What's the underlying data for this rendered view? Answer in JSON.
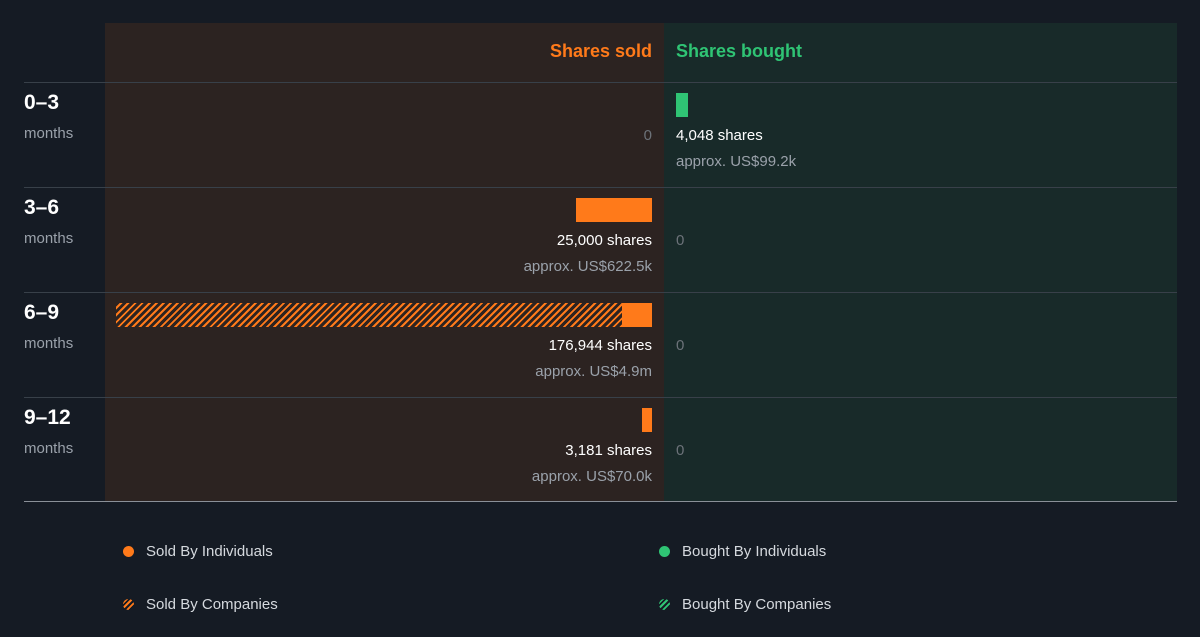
{
  "headers": {
    "sold": "Shares sold",
    "bought": "Shares bought"
  },
  "colors": {
    "sold": "#ff7a1a",
    "bought": "#2fc474"
  },
  "rows": [
    {
      "period": "0–3",
      "unit": "months",
      "sold": {
        "zero_label": "0"
      },
      "bought": {
        "shares_label": "4,048 shares",
        "approx_label": "approx. US$99.2k"
      }
    },
    {
      "period": "3–6",
      "unit": "months",
      "sold": {
        "shares_label": "25,000 shares",
        "approx_label": "approx. US$622.5k"
      },
      "bought": {
        "zero_label": "0"
      }
    },
    {
      "period": "6–9",
      "unit": "months",
      "sold": {
        "shares_label": "176,944 shares",
        "approx_label": "approx. US$4.9m"
      },
      "bought": {
        "zero_label": "0"
      }
    },
    {
      "period": "9–12",
      "unit": "months",
      "sold": {
        "shares_label": "3,181 shares",
        "approx_label": "approx. US$70.0k"
      },
      "bought": {
        "zero_label": "0"
      }
    }
  ],
  "legend": [
    {
      "label": "Sold By Individuals",
      "kind": "solid",
      "side": "sold"
    },
    {
      "label": "Bought By Individuals",
      "kind": "solid",
      "side": "bought"
    },
    {
      "label": "Sold By Companies",
      "kind": "hatch",
      "side": "sold"
    },
    {
      "label": "Bought By Companies",
      "kind": "hatch",
      "side": "bought"
    }
  ],
  "chart_data": {
    "type": "bar",
    "categories": [
      "0–3",
      "3–6",
      "6–9",
      "9–12"
    ],
    "series": [
      {
        "name": "Sold By Individuals",
        "values": [
          0,
          25000,
          10000,
          3181
        ]
      },
      {
        "name": "Sold By Companies",
        "values": [
          0,
          0,
          166944,
          0
        ]
      },
      {
        "name": "Bought By Individuals",
        "values": [
          4048,
          0,
          0,
          0
        ]
      },
      {
        "name": "Bought By Companies",
        "values": [
          0,
          0,
          0,
          0
        ]
      }
    ],
    "totals": {
      "sold": [
        0,
        25000,
        176944,
        3181
      ],
      "bought": [
        4048,
        0,
        0,
        0
      ]
    },
    "xlabel": "months",
    "ylabel": ""
  }
}
